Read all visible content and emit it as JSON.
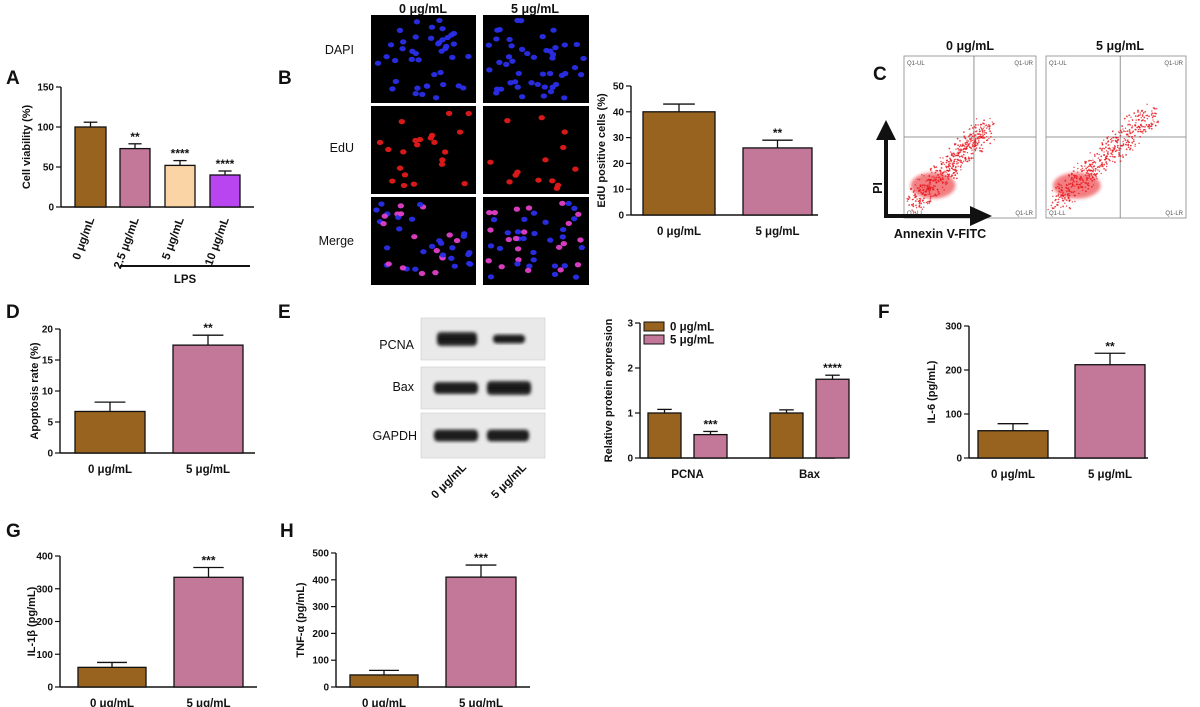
{
  "colors": {
    "brown": "#97631f",
    "pink": "#c3789a",
    "peach": "#fbd4a6",
    "violet": "#b845f0"
  },
  "panels": {
    "A": "A",
    "B": "B",
    "C": "C",
    "D": "D",
    "E": "E",
    "F": "F",
    "G": "G",
    "H": "H"
  },
  "panel_b_images": {
    "col_headers": [
      "0 μg/mL",
      "5 μg/mL"
    ],
    "rows": [
      "DAPI",
      "EdU",
      "Merge"
    ]
  },
  "panel_c_flow": {
    "col_headers": [
      "0 μg/mL",
      "5 μg/mL"
    ],
    "x_axis": "Annexin V-FITC",
    "y_axis": "PI",
    "quadrants": [
      "Q1-UL",
      "Q1-UR",
      "Q1-LL",
      "Q1-LR"
    ]
  },
  "panel_e_blot": {
    "bands": [
      "PCNA",
      "Bax",
      "GAPDH"
    ],
    "lanes": [
      "0 μg/mL",
      "5 μg/mL"
    ]
  },
  "chart_data": [
    {
      "id": "A",
      "type": "bar",
      "categories": [
        "0 μg/mL",
        "2.5 μg/mL",
        "5 μg/mL",
        "10 μg/mL"
      ],
      "values": [
        100,
        73,
        52,
        40
      ],
      "errors": [
        6,
        6,
        6,
        5
      ],
      "significance": [
        "",
        "**",
        "****",
        "****"
      ],
      "ylabel": "Cell viability (%)",
      "ylim": [
        0,
        150
      ],
      "yticks": [
        0,
        50,
        100,
        150
      ],
      "group_label": "LPS"
    },
    {
      "id": "B",
      "type": "bar",
      "categories": [
        "0 μg/mL",
        "5 μg/mL"
      ],
      "values": [
        40,
        26
      ],
      "errors": [
        3,
        3
      ],
      "significance": [
        "",
        "**"
      ],
      "ylabel": "EdU positive cells (%)",
      "ylim": [
        0,
        50
      ],
      "yticks": [
        0,
        10,
        20,
        30,
        40,
        50
      ]
    },
    {
      "id": "D",
      "type": "bar",
      "categories": [
        "0 μg/mL",
        "5 μg/mL"
      ],
      "values": [
        6.7,
        17.4
      ],
      "errors": [
        1.5,
        1.6
      ],
      "significance": [
        "",
        "**"
      ],
      "ylabel": "Apoptosis rate (%)",
      "ylim": [
        0,
        20
      ],
      "yticks": [
        0,
        5,
        10,
        15,
        20
      ]
    },
    {
      "id": "E",
      "type": "bar",
      "categories": [
        "PCNA",
        "Bax"
      ],
      "series": [
        {
          "name": "0 μg/mL",
          "values": [
            1.0,
            1.0
          ],
          "errors": [
            0.08,
            0.07
          ],
          "significance": [
            "",
            ""
          ]
        },
        {
          "name": "5 μg/mL",
          "values": [
            0.52,
            1.75
          ],
          "errors": [
            0.07,
            0.09
          ],
          "significance": [
            "***",
            "****"
          ]
        }
      ],
      "ylabel": "Relative protein expression",
      "ylim": [
        0,
        3
      ],
      "yticks": [
        0,
        1,
        2,
        3
      ],
      "legend": "top-left"
    },
    {
      "id": "F",
      "type": "bar",
      "categories": [
        "0 μg/mL",
        "5 μg/mL"
      ],
      "values": [
        62,
        212
      ],
      "errors": [
        16,
        26
      ],
      "significance": [
        "",
        "**"
      ],
      "ylabel": "IL-6 (pg/mL)",
      "ylim": [
        0,
        300
      ],
      "yticks": [
        0,
        100,
        200,
        300
      ]
    },
    {
      "id": "G",
      "type": "bar",
      "categories": [
        "0 μg/mL",
        "5 μg/mL"
      ],
      "values": [
        60,
        335
      ],
      "errors": [
        15,
        30
      ],
      "significance": [
        "",
        "***"
      ],
      "ylabel": "IL-1β (pg/mL)",
      "ylim": [
        0,
        400
      ],
      "yticks": [
        0,
        100,
        200,
        300,
        400
      ]
    },
    {
      "id": "H",
      "type": "bar",
      "categories": [
        "0 μg/mL",
        "5 μg/mL"
      ],
      "values": [
        45,
        410
      ],
      "errors": [
        17,
        45
      ],
      "significance": [
        "",
        "***"
      ],
      "ylabel": "TNF-α (pg/mL)",
      "ylim": [
        0,
        500
      ],
      "yticks": [
        0,
        100,
        200,
        300,
        400,
        500
      ]
    }
  ]
}
